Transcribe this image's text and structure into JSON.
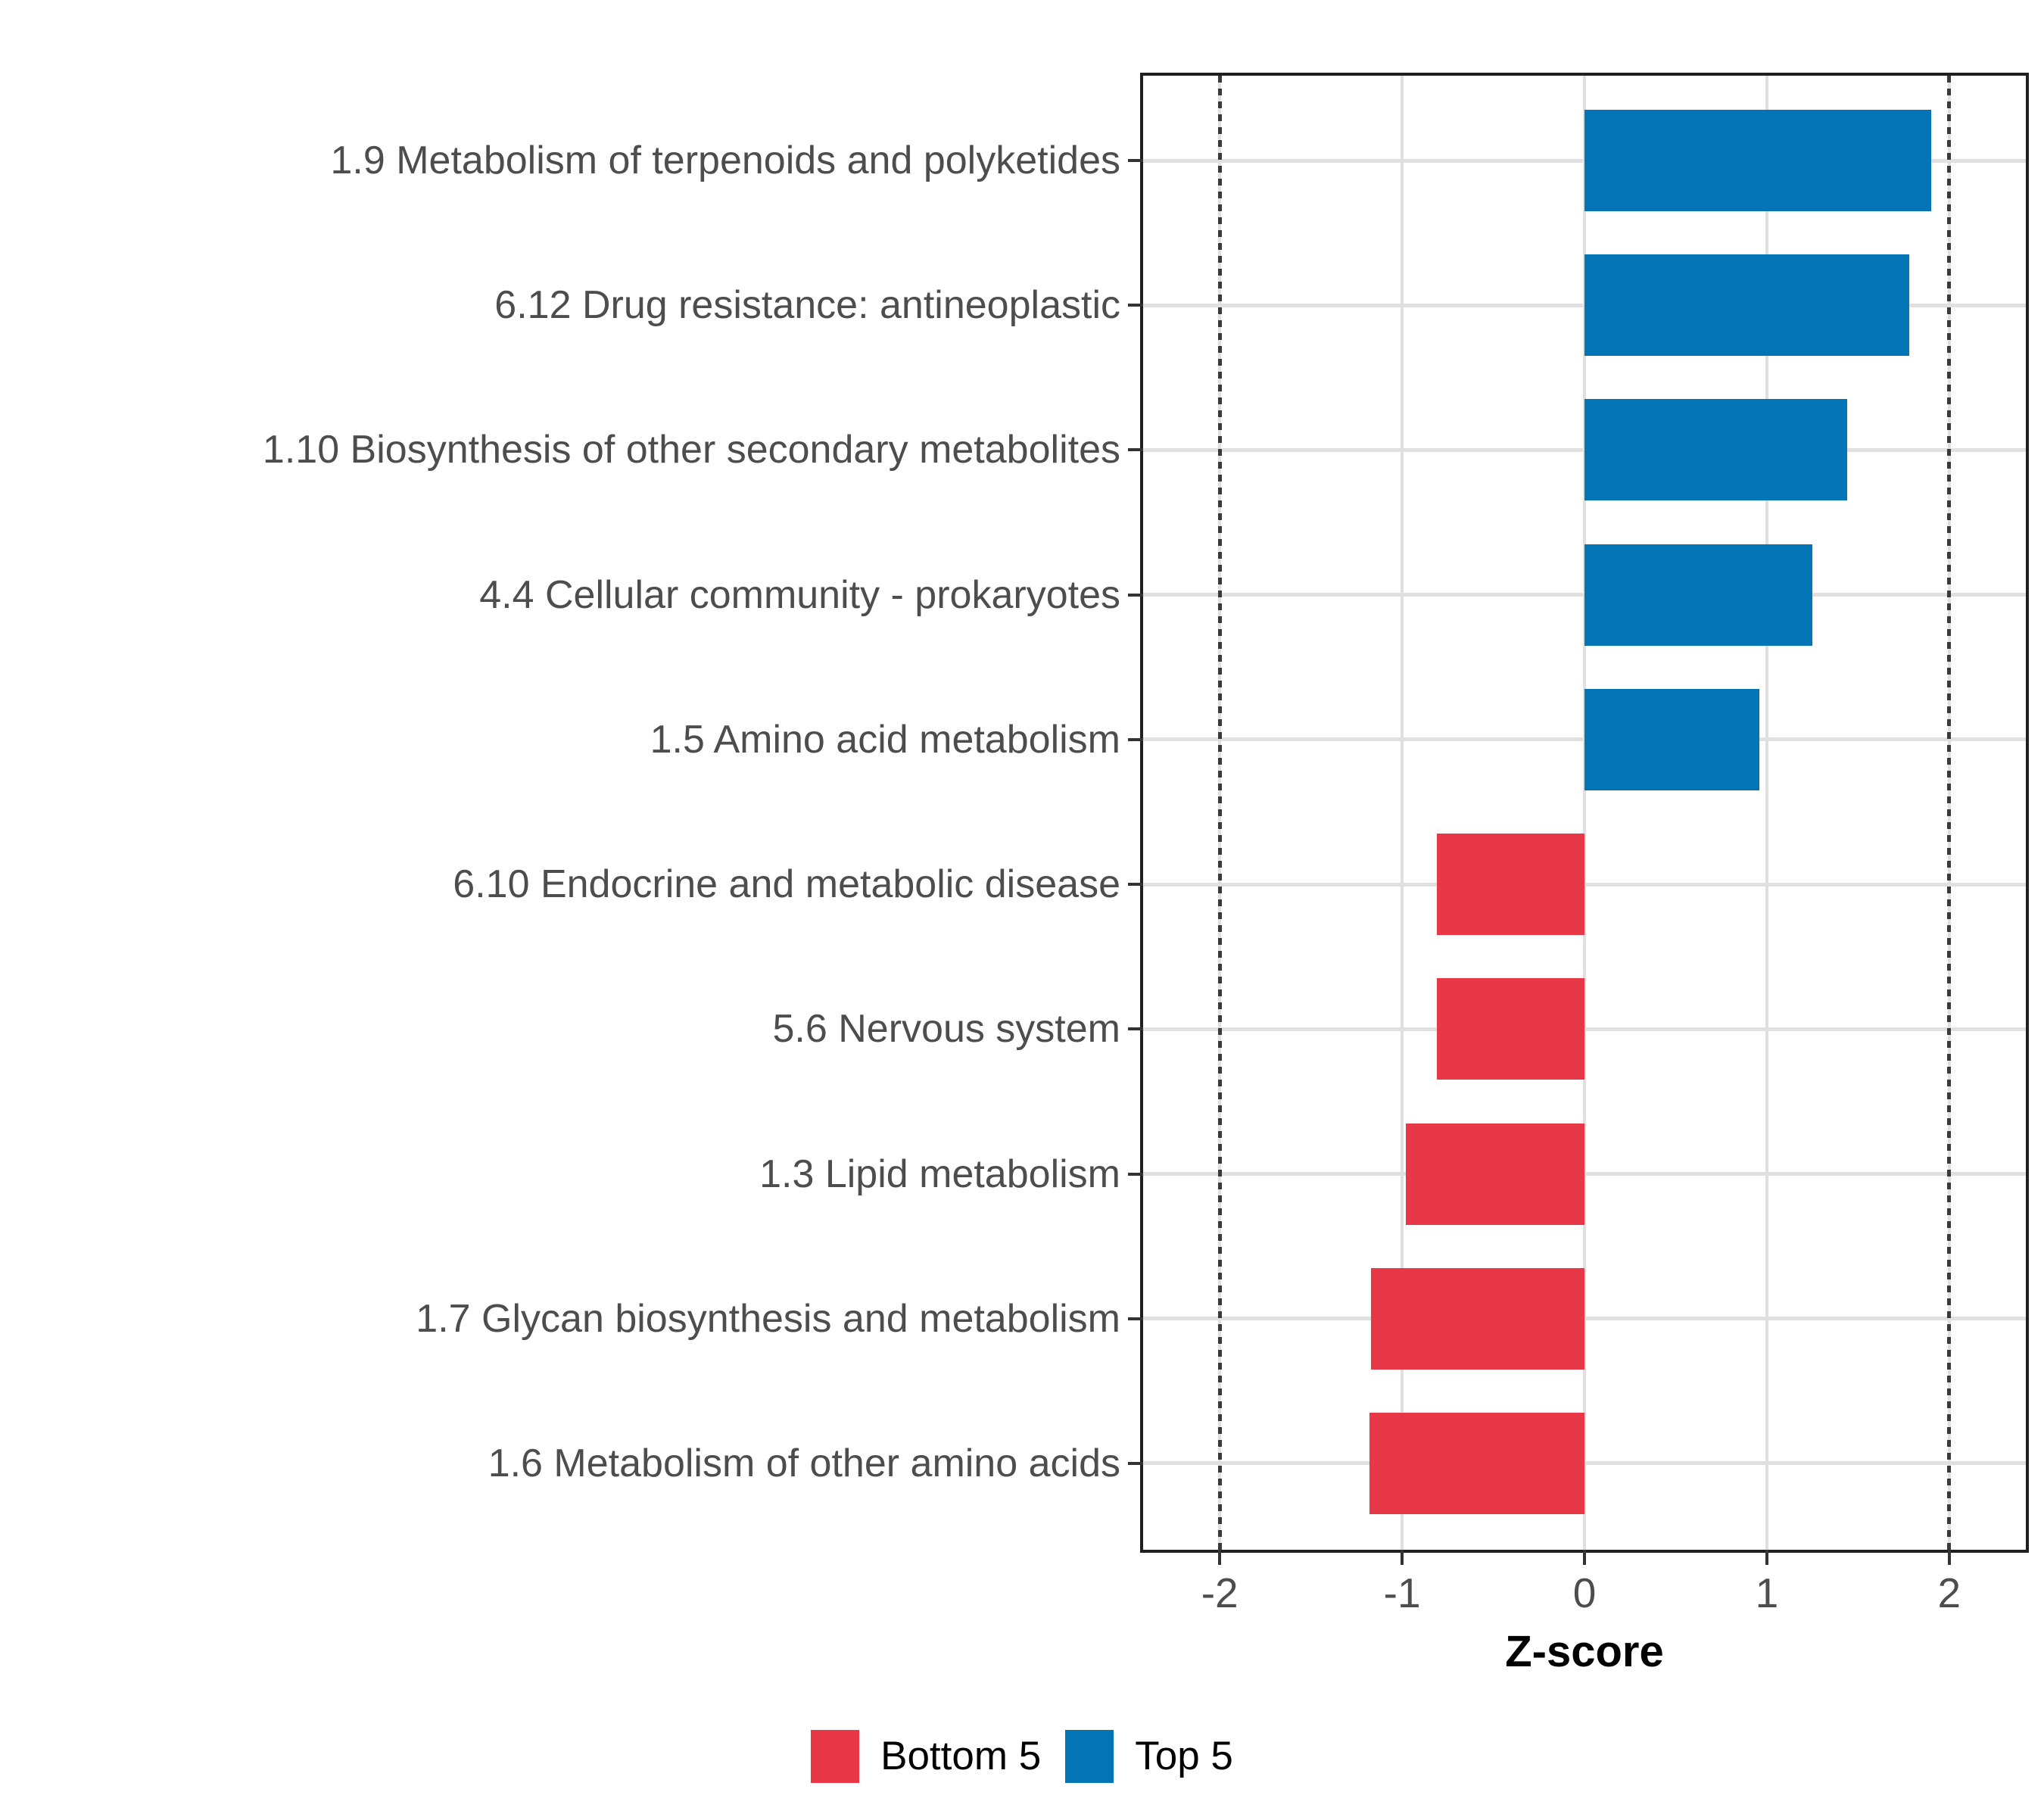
{
  "chart_data": {
    "type": "bar",
    "orientation": "horizontal",
    "title": "",
    "xlabel": "Z-score",
    "ylabel": "",
    "xlim": [
      -2.42,
      2.42
    ],
    "x_ticks": [
      -2,
      -1,
      0,
      1,
      2
    ],
    "x_tick_labels": [
      "-2",
      "-1",
      "0",
      "1",
      "2"
    ],
    "reference_lines_dotted": [
      -2,
      2
    ],
    "grid": "major",
    "legend_position": "bottom",
    "categories": [
      "1.9 Metabolism of terpenoids and polyketides",
      "6.12 Drug resistance: antineoplastic",
      "1.10 Biosynthesis of other secondary metabolites",
      "4.4 Cellular community - prokaryotes",
      "1.5 Amino acid metabolism",
      "6.10 Endocrine and metabolic disease",
      "5.6 Nervous system",
      "1.3 Lipid metabolism",
      "1.7 Glycan biosynthesis and metabolism",
      "1.6 Metabolism of other amino acids"
    ],
    "values": [
      1.9,
      1.78,
      1.44,
      1.25,
      0.96,
      -0.81,
      -0.81,
      -0.98,
      -1.17,
      -1.18
    ],
    "groups": [
      "Top 5",
      "Top 5",
      "Top 5",
      "Top 5",
      "Top 5",
      "Bottom 5",
      "Bottom 5",
      "Bottom 5",
      "Bottom 5",
      "Bottom 5"
    ],
    "colors": {
      "Top 5": "#0374b5",
      "Bottom 5": "#e83847"
    },
    "legend": [
      {
        "label": "Bottom 5",
        "group": "Bottom 5"
      },
      {
        "label": "Top 5",
        "group": "Top 5"
      }
    ]
  }
}
